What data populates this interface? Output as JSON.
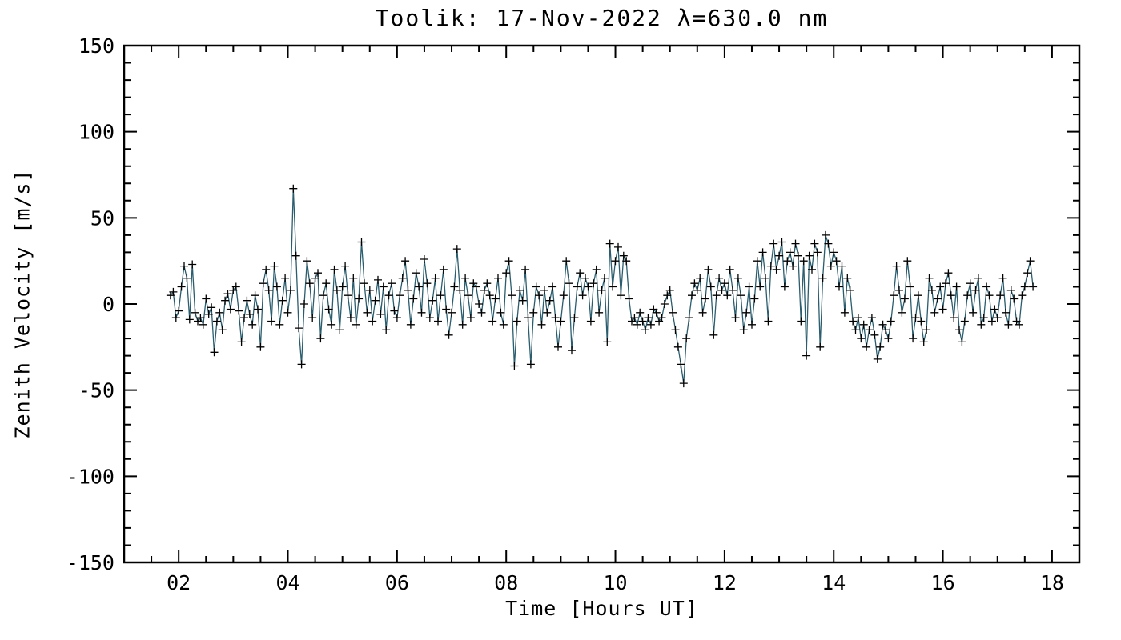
{
  "chart_data": {
    "type": "line",
    "title": "Toolik: 17-Nov-2022 λ=630.0 nm",
    "xlabel": "Time [Hours UT]",
    "ylabel": "Zenith Velocity [m/s]",
    "xlim": [
      1.0,
      18.5
    ],
    "ylim": [
      -150,
      150
    ],
    "grid": false,
    "legend": "none",
    "line_color": "#2b5d6e",
    "marker": "plus",
    "marker_color": "#000000",
    "x_ticks": {
      "values": [
        2,
        4,
        6,
        8,
        10,
        12,
        14,
        16,
        18
      ],
      "labels": [
        "02",
        "04",
        "06",
        "08",
        "10",
        "12",
        "14",
        "16",
        "18"
      ],
      "minor_step": 0.5
    },
    "y_ticks": {
      "values": [
        -150,
        -100,
        -50,
        0,
        50,
        100,
        150
      ],
      "labels": [
        "-150",
        "-100",
        "-50",
        "0",
        "50",
        "100",
        "150"
      ],
      "minor_step": 10
    },
    "series": [
      {
        "name": "zenith-velocity",
        "x_start": 1.85,
        "x_step": 0.05,
        "values": [
          5,
          7,
          -8,
          -4,
          10,
          22,
          15,
          -9,
          23,
          -5,
          -10,
          -8,
          -12,
          3,
          -6,
          -2,
          -28,
          -10,
          -5,
          -15,
          2,
          6,
          -3,
          8,
          10,
          -4,
          -22,
          -8,
          2,
          -6,
          -12,
          5,
          -3,
          -25,
          12,
          20,
          8,
          -10,
          22,
          10,
          -12,
          2,
          15,
          -5,
          8,
          67,
          28,
          -14,
          -35,
          0,
          25,
          12,
          -8,
          15,
          18,
          -20,
          5,
          12,
          -3,
          -12,
          20,
          8,
          -15,
          10,
          22,
          5,
          -8,
          15,
          -12,
          3,
          36,
          12,
          -5,
          8,
          -10,
          2,
          14,
          -6,
          10,
          -15,
          5,
          12,
          -4,
          -8,
          5,
          15,
          25,
          8,
          -12,
          3,
          18,
          10,
          -5,
          26,
          12,
          -8,
          2,
          15,
          -10,
          5,
          20,
          -3,
          -18,
          -5,
          10,
          32,
          8,
          -12,
          15,
          5,
          -8,
          12,
          10,
          0,
          -5,
          8,
          12,
          5,
          -10,
          3,
          15,
          -5,
          -12,
          18,
          25,
          5,
          -36,
          -10,
          8,
          2,
          20,
          -8,
          -35,
          -5,
          10,
          5,
          -12,
          8,
          -5,
          2,
          10,
          -8,
          -25,
          -10,
          5,
          25,
          12,
          -27,
          -8,
          10,
          18,
          5,
          15,
          10,
          -10,
          12,
          20,
          -5,
          8,
          15,
          -22,
          35,
          10,
          25,
          33,
          5,
          28,
          25,
          3,
          -10,
          -8,
          -12,
          -5,
          -10,
          -15,
          -8,
          -12,
          -3,
          -5,
          -10,
          -8,
          0,
          5,
          8,
          -5,
          -15,
          -25,
          -35,
          -46,
          -20,
          -8,
          5,
          12,
          8,
          15,
          -5,
          3,
          20,
          10,
          -18,
          5,
          15,
          8,
          12,
          5,
          20,
          8,
          -8,
          15,
          5,
          -15,
          -5,
          10,
          -12,
          3,
          25,
          10,
          30,
          15,
          -10,
          22,
          35,
          20,
          28,
          36,
          10,
          25,
          30,
          22,
          35,
          28,
          -10,
          25,
          -30,
          28,
          20,
          35,
          30,
          -25,
          15,
          40,
          35,
          22,
          30,
          25,
          10,
          22,
          -5,
          15,
          8,
          -10,
          -15,
          -8,
          -20,
          -12,
          -25,
          -15,
          -8,
          -18,
          -32,
          -25,
          -12,
          -15,
          -20,
          -10,
          5,
          22,
          8,
          -5,
          3,
          25,
          10,
          -20,
          -8,
          5,
          -10,
          -22,
          -15,
          15,
          8,
          -5,
          3,
          10,
          -3,
          12,
          18,
          5,
          -8,
          10,
          -15,
          -22,
          -10,
          5,
          12,
          -5,
          8,
          15,
          -12,
          -8,
          10,
          5,
          -10,
          -3,
          -8,
          5,
          15,
          -5,
          -12,
          8,
          3,
          -10,
          -12,
          5,
          10,
          18,
          25,
          10
        ]
      }
    ]
  }
}
